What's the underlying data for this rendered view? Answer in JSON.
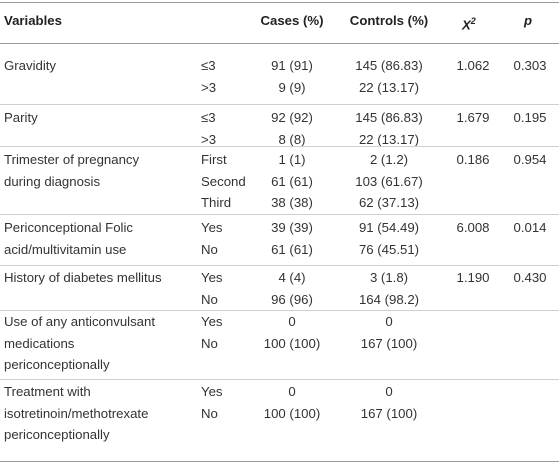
{
  "header": {
    "variables": "Variables",
    "cases": "Cases (%)",
    "controls": "Controls (%)",
    "chi_main": "X",
    "chi_sup": "2",
    "p": "p"
  },
  "rows": [
    {
      "variable": [
        "Gravidity"
      ],
      "levels": [
        "≤3",
        ">3"
      ],
      "cases": [
        "91 (91)",
        "9 (9)"
      ],
      "controls": [
        "145 (86.83)",
        "22 (13.17)"
      ],
      "chi2": "1.062",
      "p": "0.303"
    },
    {
      "variable": [
        "Parity"
      ],
      "levels": [
        "≤3",
        ">3"
      ],
      "cases": [
        "92 (92)",
        "8 (8)"
      ],
      "controls": [
        "145 (86.83)",
        "22 (13.17)"
      ],
      "chi2": "1.679",
      "p": "0.195"
    },
    {
      "variable": [
        "Trimester of pregnancy",
        "during diagnosis"
      ],
      "levels": [
        "First",
        "Second",
        "Third"
      ],
      "cases": [
        "1 (1)",
        "61 (61)",
        "38 (38)"
      ],
      "controls": [
        "2 (1.2)",
        "103 (61.67)",
        "62 (37.13)"
      ],
      "chi2": "0.186",
      "p": "0.954"
    },
    {
      "variable": [
        "Periconceptional Folic",
        "acid/multivitamin use"
      ],
      "levels": [
        "Yes",
        "No"
      ],
      "cases": [
        "39 (39)",
        "61 (61)"
      ],
      "controls": [
        "91 (54.49)",
        "76 (45.51)"
      ],
      "chi2": "6.008",
      "p": "0.014"
    },
    {
      "variable": [
        "History of diabetes mellitus"
      ],
      "levels": [
        "Yes",
        "No"
      ],
      "cases": [
        "4 (4)",
        "96 (96)"
      ],
      "controls": [
        "3 (1.8)",
        "164 (98.2)"
      ],
      "chi2": "1.190",
      "p": "0.430"
    },
    {
      "variable": [
        "Use of any anticonvulsant",
        "medications",
        "periconceptionally"
      ],
      "levels": [
        "Yes",
        "No"
      ],
      "cases": [
        "0",
        "100 (100)"
      ],
      "controls": [
        "0",
        "167 (100)"
      ],
      "chi2": "",
      "p": ""
    },
    {
      "variable": [
        "Treatment with",
        "isotretinoin/methotrexate",
        "periconceptionally"
      ],
      "levels": [
        "Yes",
        "No"
      ],
      "cases": [
        "0",
        "100 (100)"
      ],
      "controls": [
        "0",
        "167 (100)"
      ],
      "chi2": "",
      "p": ""
    }
  ]
}
